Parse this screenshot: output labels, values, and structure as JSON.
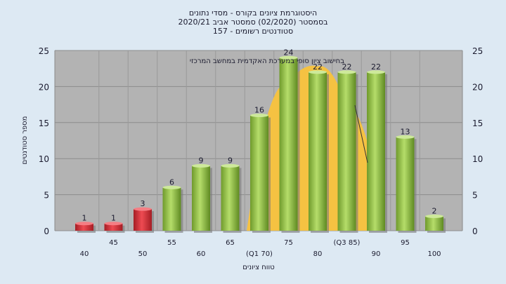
{
  "colors": {
    "background": "#dde9f3",
    "plot_area": "#b3b3b3",
    "bar_fail": "#d9323a",
    "bar_pass": "#8fbf3f",
    "curve_fill": "#f5c242"
  },
  "chart_data": {
    "type": "bar",
    "title": [
      "היסטוגרמת ציונים בקורס - מסדי נתונים",
      "בסמסטר  (02/2020)  סמסטר אביב 2020/21",
      "157 - סטודנטים רשומים"
    ],
    "annotation": "בחישוב ציון סופי במערכת האקדמית במחשב המרכזי",
    "xlabel": "טווח ציונים",
    "ylabel": "מספר סטודנטים",
    "ylim": [
      0,
      25
    ],
    "y_ticks": [
      0,
      5,
      10,
      15,
      20,
      25
    ],
    "grid": true,
    "categories": [
      "40",
      "45",
      "50",
      "55",
      "60",
      "65",
      "(Q1 70)",
      "75",
      "80",
      "(Q3 85)",
      "90",
      "95",
      "100"
    ],
    "values": [
      1,
      1,
      3,
      6,
      9,
      9,
      16,
      24,
      22,
      22,
      22,
      13,
      2
    ],
    "bar_status": [
      "fail",
      "fail",
      "fail",
      "pass",
      "pass",
      "pass",
      "pass",
      "pass",
      "pass",
      "pass",
      "pass",
      "pass",
      "pass"
    ],
    "normal_curve": {
      "x": [
        "(Q1 70)",
        "75",
        "80",
        "(Q3 85)",
        "90"
      ],
      "values": [
        11.5,
        20.5,
        22.8,
        17,
        7
      ]
    }
  }
}
